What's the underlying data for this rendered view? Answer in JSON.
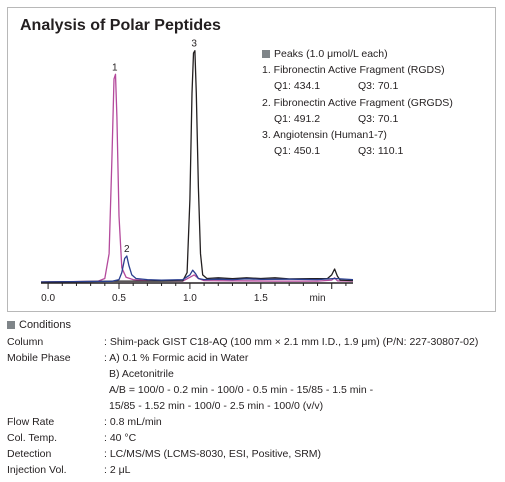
{
  "chart_data": {
    "type": "line",
    "title": "Analysis of Polar Peptides",
    "xlabel": "",
    "ylabel": "",
    "x_unit": "min",
    "xlim": [
      -0.05,
      2.15
    ],
    "ylim": [
      0,
      100
    ],
    "x_ticks": [
      0.0,
      0.5,
      1.0,
      1.5
    ],
    "x_tick_labels": [
      "0.0",
      "0.5",
      "1.0",
      "1.5"
    ],
    "grid": false,
    "legend_position": "top-right",
    "series": [
      {
        "name": "1",
        "color": "#b44a9c",
        "points": [
          [
            -0.05,
            0
          ],
          [
            0.35,
            0.3
          ],
          [
            0.4,
            1.5
          ],
          [
            0.43,
            12
          ],
          [
            0.45,
            52
          ],
          [
            0.465,
            86
          ],
          [
            0.475,
            88
          ],
          [
            0.485,
            70
          ],
          [
            0.5,
            28
          ],
          [
            0.52,
            6
          ],
          [
            0.55,
            2
          ],
          [
            0.6,
            1
          ],
          [
            0.7,
            0.6
          ],
          [
            0.8,
            0.5
          ],
          [
            0.95,
            0.4
          ],
          [
            1.0,
            2
          ],
          [
            1.03,
            3
          ],
          [
            1.06,
            1.5
          ],
          [
            1.1,
            0.6
          ],
          [
            1.3,
            0.5
          ],
          [
            1.6,
            0.4
          ],
          [
            1.9,
            0.4
          ],
          [
            2.0,
            0.8
          ],
          [
            2.02,
            1.8
          ],
          [
            2.04,
            0.5
          ],
          [
            2.15,
            0.4
          ]
        ],
        "peak_label": "1",
        "peak_x": 0.47
      },
      {
        "name": "2",
        "color": "#2a3f8f",
        "points": [
          [
            -0.05,
            0
          ],
          [
            0.45,
            0.3
          ],
          [
            0.5,
            1
          ],
          [
            0.52,
            4
          ],
          [
            0.54,
            10
          ],
          [
            0.555,
            11
          ],
          [
            0.57,
            7
          ],
          [
            0.59,
            3
          ],
          [
            0.62,
            1.5
          ],
          [
            0.7,
            1
          ],
          [
            0.8,
            0.8
          ],
          [
            0.95,
            1
          ],
          [
            1.0,
            3
          ],
          [
            1.02,
            5
          ],
          [
            1.04,
            3.5
          ],
          [
            1.06,
            1.5
          ],
          [
            1.1,
            1
          ],
          [
            1.2,
            1.2
          ],
          [
            1.3,
            1
          ],
          [
            1.4,
            1.3
          ],
          [
            1.5,
            1.1
          ],
          [
            1.7,
            1.2
          ],
          [
            1.9,
            1
          ],
          [
            2.02,
            1.5
          ],
          [
            2.15,
            1
          ]
        ],
        "peak_label": "2",
        "peak_x": 0.555
      },
      {
        "name": "3",
        "color": "#231f20",
        "points": [
          [
            -0.05,
            0
          ],
          [
            0.4,
            0.3
          ],
          [
            0.5,
            0.4
          ],
          [
            0.6,
            0.4
          ],
          [
            0.8,
            0.4
          ],
          [
            0.95,
            0.5
          ],
          [
            0.98,
            4
          ],
          [
            1.0,
            35
          ],
          [
            1.015,
            80
          ],
          [
            1.025,
            97
          ],
          [
            1.035,
            98
          ],
          [
            1.045,
            80
          ],
          [
            1.06,
            40
          ],
          [
            1.075,
            12
          ],
          [
            1.09,
            3
          ],
          [
            1.12,
            1.5
          ],
          [
            1.2,
            1.8
          ],
          [
            1.3,
            1.4
          ],
          [
            1.4,
            1.8
          ],
          [
            1.5,
            1.5
          ],
          [
            1.6,
            1.8
          ],
          [
            1.7,
            1.3
          ],
          [
            1.85,
            1.4
          ],
          [
            1.97,
            1.5
          ],
          [
            2.0,
            3
          ],
          [
            2.02,
            5.5
          ],
          [
            2.04,
            2.5
          ],
          [
            2.06,
            0.8
          ],
          [
            2.15,
            0.6
          ]
        ],
        "peak_label": "3",
        "peak_x": 1.03
      }
    ],
    "legend": {
      "heading": "Peaks (1.0 μmol/L each)",
      "peaks": [
        {
          "name": "1. Fibronectin Active Fragment (RGDS)",
          "q1": "Q1: 434.1",
          "q3": "Q3: 70.1"
        },
        {
          "name": "2. Fibronectin Active Fragment (GRGDS)",
          "q1": "Q1: 491.2",
          "q3": "Q3: 70.1"
        },
        {
          "name": "3. Angiotensin (Human1-7)",
          "q1": "Q1: 450.1",
          "q3": "Q3: 110.1"
        }
      ]
    }
  },
  "conditions": {
    "heading": "Conditions",
    "column": {
      "label": "Column",
      "value": ": Shim-pack GIST C18-AQ (100 mm × 2.1 mm I.D., 1.9 μm) (P/N: 227-30807-02)"
    },
    "mobile_phase": {
      "label": "Mobile Phase",
      "value": ": A) 0.1 % Formic acid in Water",
      "lines": [
        "B) Acetonitrile",
        "A/B = 100/0 - 0.2 min - 100/0 - 0.5 min - 15/85 - 1.5 min -",
        "15/85 - 1.52 min - 100/0 - 2.5 min - 100/0 (v/v)"
      ]
    },
    "flow_rate": {
      "label": "Flow Rate",
      "value": ": 0.8 mL/min"
    },
    "col_temp": {
      "label": "Col. Temp.",
      "value": ": 40 °C"
    },
    "detection": {
      "label": "Detection",
      "value": ": LC/MS/MS (LCMS-8030, ESI, Positive, SRM)"
    },
    "injection_vol": {
      "label": "Injection Vol.",
      "value": ": 2 μL"
    }
  }
}
